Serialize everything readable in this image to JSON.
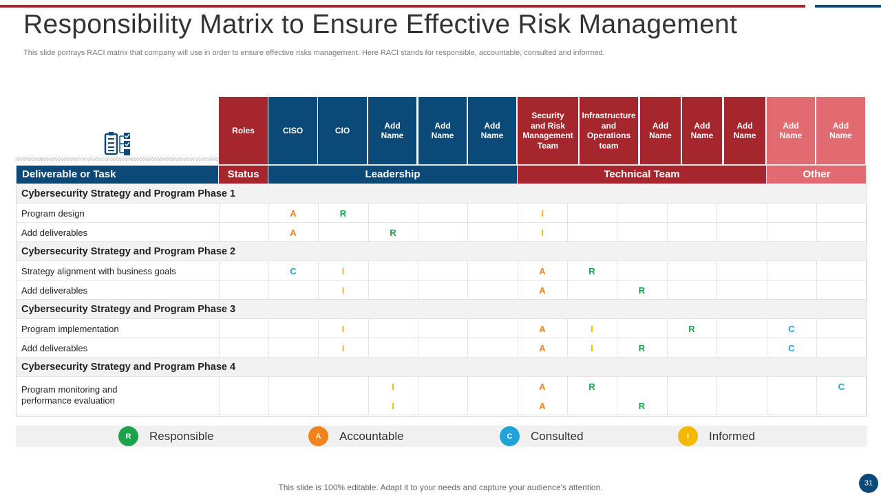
{
  "title": "Responsibility Matrix to Ensure Effective Risk Management",
  "subtitle": "This slide portrays RACI matrix that company will use in order to ensure effective risks management. Here RACI stands for responsible, accountable, consulted and informed.",
  "header_icon": "clipboard-checklist-icon",
  "colors": {
    "red": "#a5262c",
    "blue": "#0b4a78",
    "pink": "#e06c71",
    "R": "#1aa34a",
    "A": "#f0831e",
    "C": "#1fa3d8",
    "I": "#f5b800"
  },
  "roles": [
    {
      "label": "Roles",
      "color": "red"
    },
    {
      "label": "CISO",
      "color": "blue"
    },
    {
      "label": "CIO",
      "color": "blue"
    },
    {
      "label": "Add\nName",
      "color": "blue"
    },
    {
      "label": "Add\nName",
      "color": "blue"
    },
    {
      "label": "Add\nName",
      "color": "blue"
    },
    {
      "label": "Security\nand Risk\nManagement\nTeam",
      "color": "red"
    },
    {
      "label": "Infrastructure\nand\nOperations\nteam",
      "color": "red"
    },
    {
      "label": "Add\nName",
      "color": "red"
    },
    {
      "label": "Add\nName",
      "color": "red"
    },
    {
      "label": "Add\nName",
      "color": "red"
    },
    {
      "label": "Add\nName",
      "color": "pink"
    },
    {
      "label": "Add\nName",
      "color": "pink"
    }
  ],
  "groups": [
    {
      "label": "Deliverable or Task",
      "color": "blue"
    },
    {
      "label": "Status",
      "color": "red"
    },
    {
      "label": "Leadership",
      "color": "blue"
    },
    {
      "label": "Technical Team",
      "color": "red"
    },
    {
      "label": "Other",
      "color": "pink"
    }
  ],
  "rows": [
    {
      "type": "phase",
      "label": "Cybersecurity Strategy and Program Phase 1"
    },
    {
      "type": "task",
      "label": "Program  design",
      "cells": [
        "",
        "A",
        "R",
        "",
        "",
        "",
        "I",
        "",
        "",
        "",
        "",
        "",
        ""
      ]
    },
    {
      "type": "task",
      "label": "Add deliverables",
      "cells": [
        "",
        "A",
        "",
        "R",
        "",
        "",
        "I",
        "",
        "",
        "",
        "",
        "",
        ""
      ]
    },
    {
      "type": "phase",
      "label": "Cybersecurity Strategy and Program Phase 2"
    },
    {
      "type": "task",
      "label": "Strategy alignment with business goals",
      "cells": [
        "",
        "C",
        "I",
        "",
        "",
        "",
        "A",
        "R",
        "",
        "",
        "",
        "",
        ""
      ]
    },
    {
      "type": "task",
      "label": "Add deliverables",
      "cells": [
        "",
        "",
        "I",
        "",
        "",
        "",
        "A",
        "",
        "R",
        "",
        "",
        "",
        ""
      ]
    },
    {
      "type": "phase",
      "label": "Cybersecurity Strategy and Program Phase 3"
    },
    {
      "type": "task",
      "label": "Program  implementation",
      "cells": [
        "",
        "",
        "I",
        "",
        "",
        "",
        "A",
        "I",
        "",
        "R",
        "",
        "C",
        ""
      ]
    },
    {
      "type": "task",
      "label": "Add deliverables",
      "cells": [
        "",
        "",
        "I",
        "",
        "",
        "",
        "A",
        "I",
        "R",
        "",
        "",
        "C",
        ""
      ]
    },
    {
      "type": "phase",
      "label": "Cybersecurity Strategy and Program Phase 4"
    },
    {
      "type": "task",
      "label": "Program monitoring and\nperformance  evaluation",
      "span": 2,
      "cells": [
        "",
        "",
        "",
        "I",
        "",
        "",
        "A",
        "R",
        "",
        "",
        "",
        "",
        "C"
      ]
    },
    {
      "type": "task",
      "label": "",
      "continuation": true,
      "cells": [
        "",
        "",
        "",
        "I",
        "",
        "",
        "A",
        "",
        "R",
        "",
        "",
        "",
        ""
      ]
    }
  ],
  "legend": [
    {
      "letter": "R",
      "label": "Responsible",
      "color": "#1aa34a"
    },
    {
      "letter": "A",
      "label": "Accountable",
      "color": "#f0831e"
    },
    {
      "letter": "C",
      "label": "Consulted",
      "color": "#1fa3d8"
    },
    {
      "letter": "I",
      "label": "Informed",
      "color": "#f5b800"
    }
  ],
  "footer": "This slide is 100% editable. Adapt it to your needs and capture your audience's attention.",
  "page_number": "31"
}
